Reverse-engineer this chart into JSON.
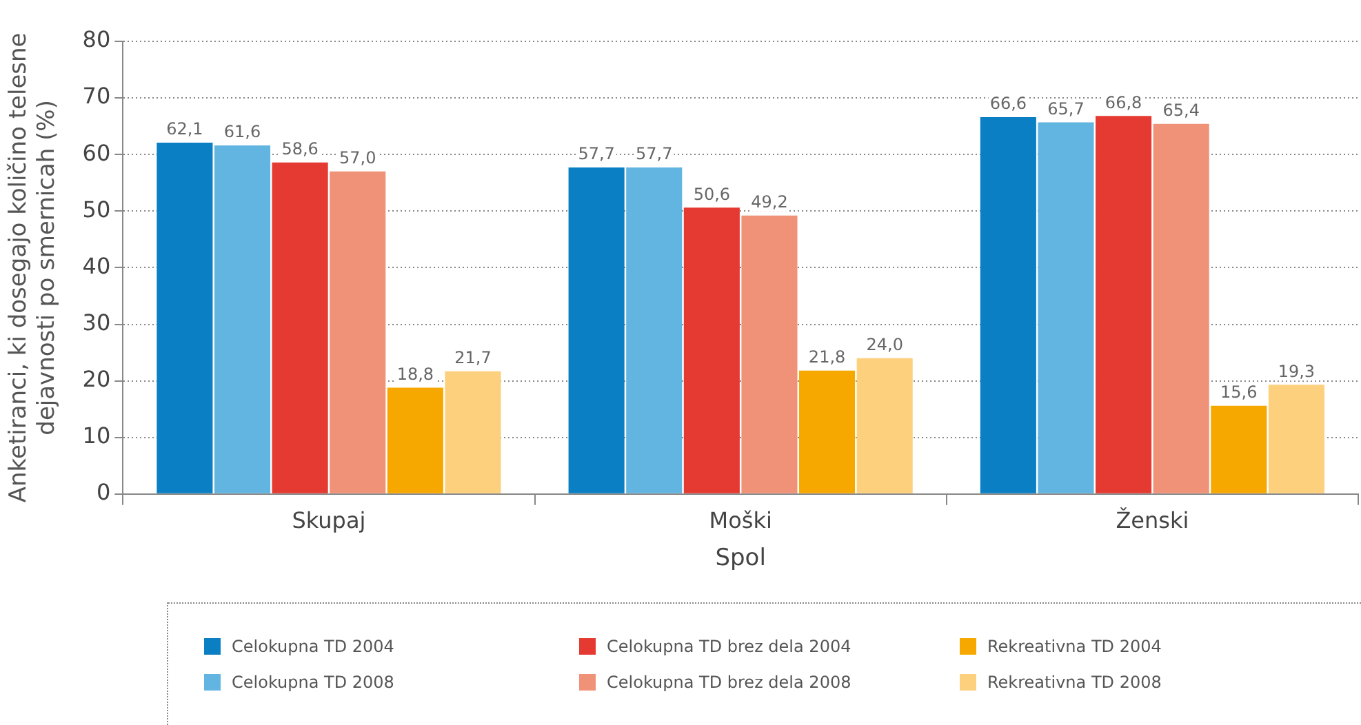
{
  "chart_data": {
    "type": "bar",
    "ylabel": "Anketiranci, ki dosegajo količino telesne\ndejavnosti po smernicah (%)",
    "xlabel": "Spol",
    "categories": [
      "Skupaj",
      "Moški",
      "Ženski"
    ],
    "ylim": [
      0,
      80
    ],
    "yticks": [
      0,
      10,
      20,
      30,
      40,
      50,
      60,
      70,
      80
    ],
    "grid": "y",
    "legend": "bottom",
    "series": [
      {
        "name": "Celokupna TD 2004",
        "color": "#0a7fc4",
        "values": [
          62.1,
          57.7,
          66.6
        ],
        "value_labels": [
          "62,1",
          "57,7",
          "66,6"
        ]
      },
      {
        "name": "Celokupna TD 2008",
        "color": "#62b5e1",
        "values": [
          61.6,
          57.7,
          65.7
        ],
        "value_labels": [
          "61,6",
          "57,7",
          "65,7"
        ]
      },
      {
        "name": "Celokupna TD brez dela 2004",
        "color": "#e53a32",
        "values": [
          58.6,
          50.6,
          66.8
        ],
        "value_labels": [
          "58,6",
          "50,6",
          "66,8"
        ]
      },
      {
        "name": "Celokupna TD brez dela 2008",
        "color": "#f09277",
        "values": [
          57.0,
          49.2,
          65.4
        ],
        "value_labels": [
          "57,0",
          "49,2",
          "65,4"
        ]
      },
      {
        "name": "Rekreativna TD 2004",
        "color": "#f7a800",
        "values": [
          18.8,
          21.8,
          15.6
        ],
        "value_labels": [
          "18,8",
          "21,8",
          "15,6"
        ]
      },
      {
        "name": "Rekreativna TD 2008",
        "color": "#fdd07e",
        "values": [
          21.7,
          24.0,
          19.3
        ],
        "value_labels": [
          "21,7",
          "24,0",
          "19,3"
        ]
      }
    ]
  }
}
